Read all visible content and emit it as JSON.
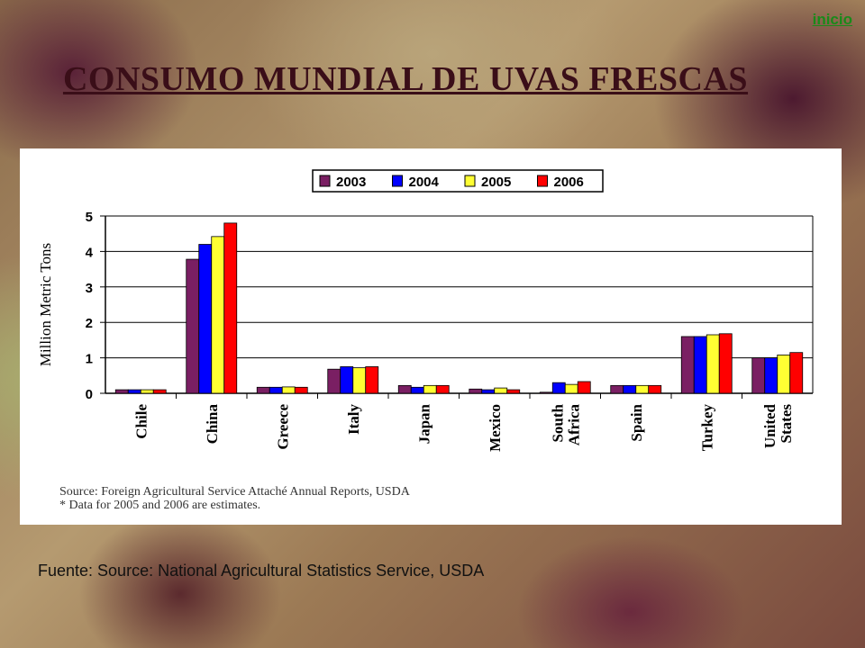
{
  "header": {
    "link_label": "inicio",
    "title": "CONSUMO MUNDIAL DE UVAS FRESCAS"
  },
  "footer": {
    "text": "Fuente: Source: National Agricultural Statistics Service, USDA"
  },
  "chart_data": {
    "type": "bar",
    "title": "",
    "xlabel": "",
    "ylabel": "Million Metric Tons",
    "ylim": [
      0,
      5
    ],
    "yticks": [
      0,
      1,
      2,
      3,
      4,
      5
    ],
    "grid": true,
    "legend_position": "top-center",
    "categories": [
      [
        "Chile"
      ],
      [
        "China"
      ],
      [
        "Greece"
      ],
      [
        "Italy"
      ],
      [
        "Japan"
      ],
      [
        "Mexico"
      ],
      [
        "South",
        "Africa"
      ],
      [
        "Spain"
      ],
      [
        "Turkey"
      ],
      [
        "United",
        "States"
      ]
    ],
    "series": [
      {
        "name": "2003",
        "color": "#7a1f63",
        "values": [
          0.1,
          3.78,
          0.17,
          0.68,
          0.22,
          0.12,
          0.03,
          0.22,
          1.6,
          1.0
        ]
      },
      {
        "name": "2004",
        "color": "#0000ff",
        "values": [
          0.1,
          4.2,
          0.17,
          0.75,
          0.17,
          0.1,
          0.3,
          0.22,
          1.6,
          1.0
        ]
      },
      {
        "name": "2005",
        "color": "#ffff33",
        "values": [
          0.1,
          4.42,
          0.18,
          0.72,
          0.22,
          0.15,
          0.25,
          0.22,
          1.65,
          1.08
        ]
      },
      {
        "name": "2006",
        "color": "#ff0000",
        "values": [
          0.1,
          4.8,
          0.17,
          0.75,
          0.22,
          0.1,
          0.33,
          0.22,
          1.68,
          1.15
        ]
      }
    ],
    "source_lines": [
      "Source: Foreign Agricultural Service Attaché Annual Reports, USDA",
      "* Data for 2005 and 2006 are estimates."
    ]
  }
}
